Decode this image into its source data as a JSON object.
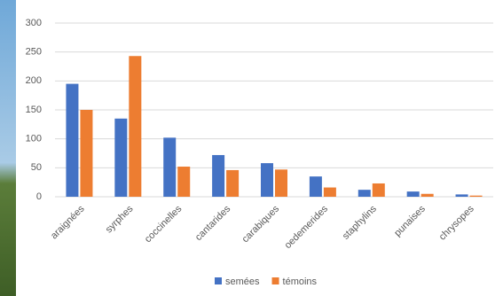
{
  "chart_data": {
    "type": "bar",
    "categories": [
      "araignées",
      "syrphes",
      "coccinelles",
      "cantarides",
      "carabiques",
      "oedemerides",
      "staphylins",
      "punaises",
      "chrysopes"
    ],
    "series": [
      {
        "name": "semées",
        "color": "#4472c4",
        "values": [
          195,
          135,
          102,
          72,
          58,
          35,
          12,
          9,
          4
        ]
      },
      {
        "name": "témoins",
        "color": "#ed7d31",
        "values": [
          150,
          243,
          52,
          46,
          47,
          16,
          23,
          5,
          2
        ]
      }
    ],
    "ylim": [
      0,
      300
    ],
    "yticks": [
      0,
      50,
      100,
      150,
      200,
      250,
      300
    ],
    "grid": true,
    "legend": "bottom"
  }
}
